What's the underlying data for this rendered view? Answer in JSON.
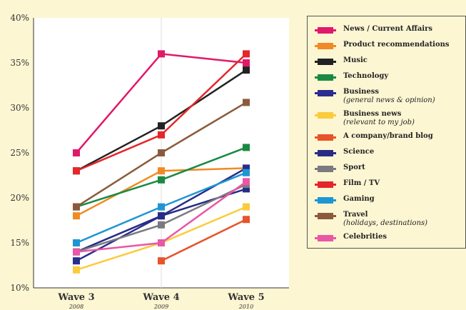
{
  "chart_data": {
    "type": "line",
    "categories": [
      "Wave 3",
      "Wave 4",
      "Wave 5"
    ],
    "category_years": [
      "2008",
      "2009",
      "2010"
    ],
    "ylim": [
      10,
      40
    ],
    "yticks": [
      "10%",
      "15%",
      "20%",
      "25%",
      "30%",
      "35%",
      "40%"
    ],
    "ytick_values": [
      10,
      15,
      20,
      25,
      30,
      35,
      40
    ],
    "series": [
      {
        "name": "News / Current Affairs",
        "color": "#e0196a",
        "values": [
          25,
          36,
          35
        ]
      },
      {
        "name": "Product recommendations",
        "color": "#f08a24",
        "values": [
          18,
          23,
          23.3
        ]
      },
      {
        "name": "Music",
        "color": "#222222",
        "values": [
          23,
          28,
          34.2
        ]
      },
      {
        "name": "Technology",
        "color": "#1a8a43",
        "values": [
          19,
          22,
          25.6
        ]
      },
      {
        "name": "Business",
        "sub": "(general news & opinion)",
        "color": "#2b2c8f",
        "values": [
          13,
          18,
          23.3
        ]
      },
      {
        "name": "Business news",
        "sub": "(relevant to my job)",
        "color": "#fbcb3c",
        "values": [
          12,
          15,
          19
        ]
      },
      {
        "name": "A company/brand blog",
        "color": "#e8532a",
        "values": [
          null,
          13,
          17.6
        ]
      },
      {
        "name": "Science",
        "color": "#272b85",
        "values": [
          14,
          18,
          21
        ]
      },
      {
        "name": "Sport",
        "color": "#7a7a80",
        "values": [
          14,
          17,
          21.5
        ]
      },
      {
        "name": "Film / TV",
        "color": "#e5262a",
        "values": [
          23,
          27,
          36
        ]
      },
      {
        "name": "Gaming",
        "color": "#1e96d3",
        "values": [
          15,
          19,
          22.8
        ]
      },
      {
        "name": "Travel",
        "sub": "(holidays, destinations)",
        "color": "#8b5a3c",
        "values": [
          19,
          25,
          30.6
        ]
      },
      {
        "name": "Celebrities",
        "color": "#e957a6",
        "values": [
          14,
          15,
          21.8
        ]
      }
    ]
  }
}
